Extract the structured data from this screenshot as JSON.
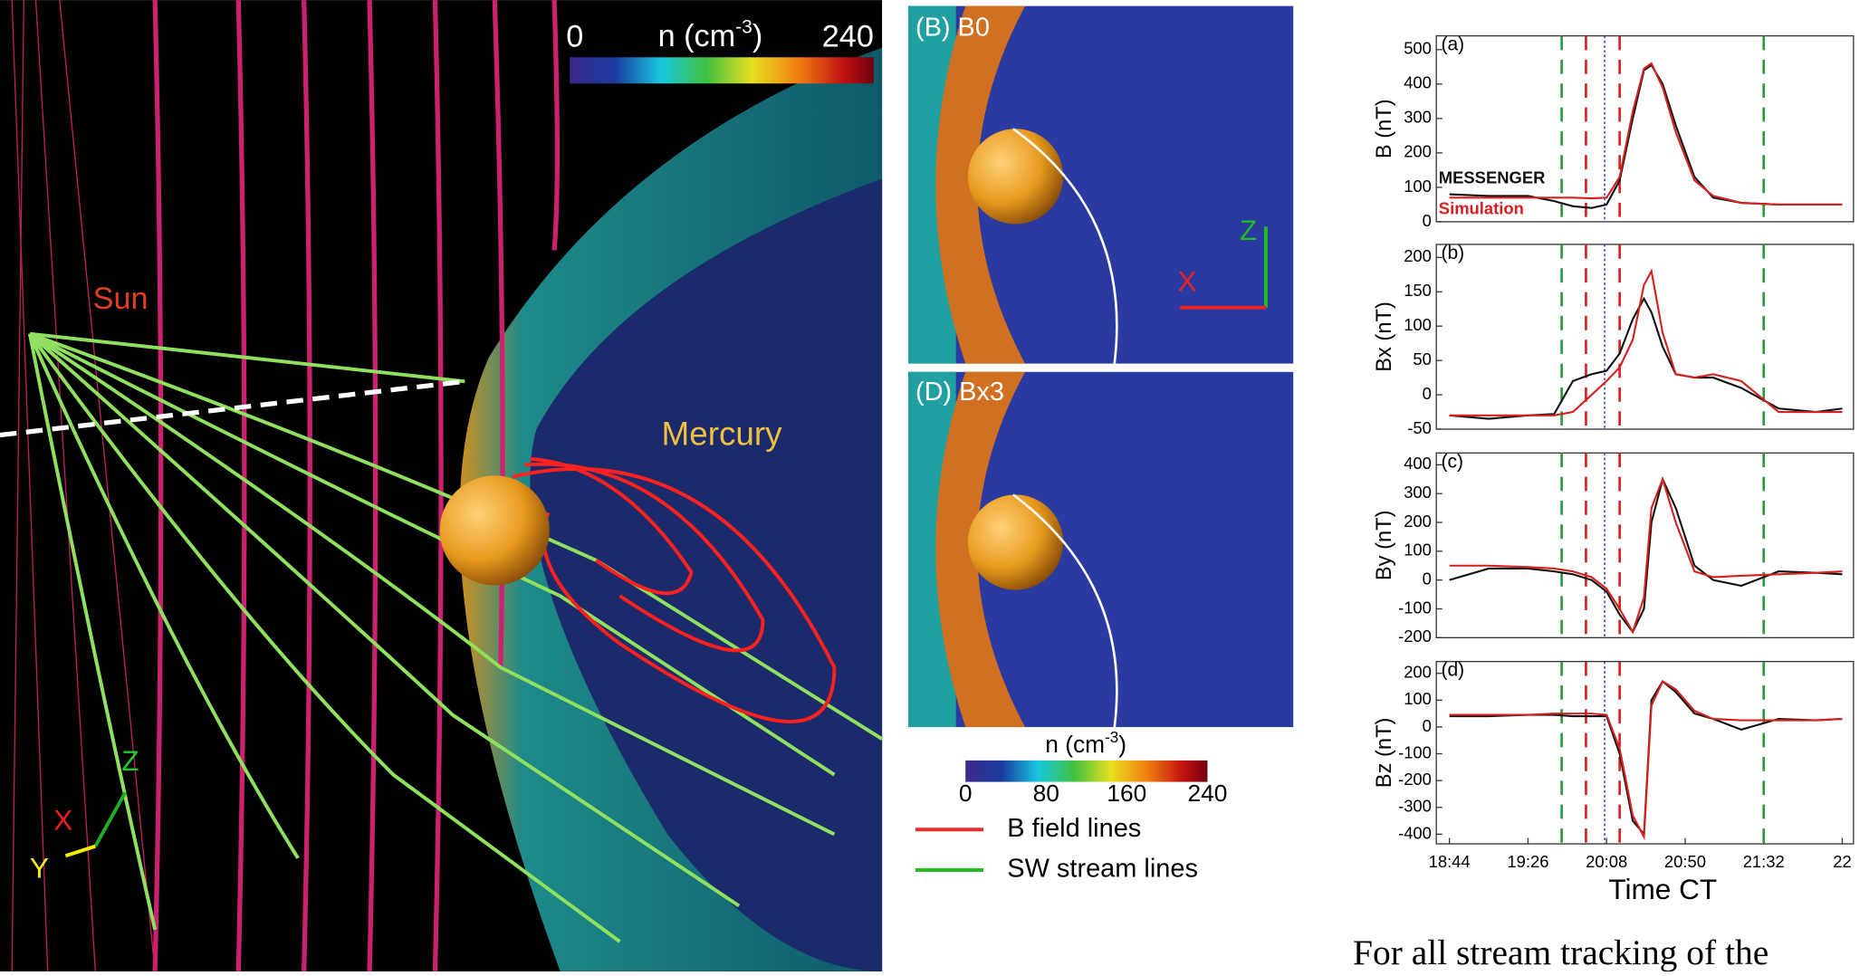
{
  "figure": {
    "left_panel": {
      "sun_label": "Sun",
      "planet_label": "Mercury",
      "colorbar": {
        "min": 0,
        "max": 240,
        "label": "n (cm",
        "label_sup": "-3",
        "label_end": ")"
      },
      "axes": {
        "z": "Z",
        "x": "X",
        "y": "Y"
      }
    },
    "middle_panel": {
      "panels": [
        "(B) B0",
        "(D) Bx3"
      ],
      "axes": {
        "z": "Z",
        "x": "X"
      },
      "colorbar": {
        "label": "n (cm",
        "label_sup": "-3",
        "label_end": ")",
        "range": [
          0,
          240
        ],
        "ticks": [
          0,
          80,
          160,
          240
        ]
      },
      "legend": [
        {
          "label": "B field lines",
          "color": "#e03030"
        },
        {
          "label": "SW stream lines",
          "color": "#22bb22"
        }
      ]
    },
    "time_markers": [
      {
        "x": 1184,
        "color": "#2a9a3a"
      },
      {
        "x": 1197,
        "color": "#d62020"
      },
      {
        "x": 1207,
        "color": "#3344cc"
      },
      {
        "x": 1215,
        "color": "#d62020"
      },
      {
        "x": 1292,
        "color": "#2a9a3a"
      }
    ],
    "body_text": "For all stream tracking of the"
  },
  "chart_data": [
    {
      "type": "line",
      "panel_label": "(a)",
      "ylabel": "B (nT)",
      "x": [
        1124,
        1145,
        1166,
        1180,
        1190,
        1200,
        1208,
        1215,
        1222,
        1228,
        1232,
        1238,
        1245,
        1255,
        1265,
        1280,
        1300,
        1320,
        1334
      ],
      "xlim": [
        1117,
        1340
      ],
      "ylim": [
        0,
        540
      ],
      "yticks": [
        0,
        100,
        200,
        300,
        400,
        500
      ],
      "series": [
        {
          "name": "MESSENGER",
          "color": "#111111",
          "values": [
            80,
            75,
            75,
            60,
            45,
            40,
            50,
            120,
            300,
            440,
            455,
            400,
            280,
            130,
            70,
            55,
            50,
            50,
            50
          ]
        },
        {
          "name": "Simulation",
          "color": "#d62020",
          "values": [
            70,
            70,
            70,
            70,
            70,
            68,
            70,
            130,
            320,
            445,
            460,
            390,
            260,
            120,
            75,
            55,
            50,
            50,
            50
          ]
        }
      ]
    },
    {
      "type": "line",
      "panel_label": "(b)",
      "ylabel": "Bx (nT)",
      "x": [
        1124,
        1145,
        1166,
        1180,
        1190,
        1200,
        1208,
        1215,
        1222,
        1228,
        1232,
        1238,
        1245,
        1255,
        1265,
        1280,
        1300,
        1320,
        1334
      ],
      "xlim": [
        1117,
        1340
      ],
      "ylim": [
        -50,
        219
      ],
      "yticks": [
        -50,
        0,
        50,
        100,
        150,
        200
      ],
      "series": [
        {
          "color": "#111111",
          "values": [
            -30,
            -35,
            -30,
            -28,
            20,
            30,
            35,
            60,
            110,
            140,
            120,
            70,
            30,
            25,
            25,
            10,
            -20,
            -25,
            -20
          ]
        },
        {
          "color": "#d62020",
          "values": [
            -30,
            -30,
            -30,
            -30,
            -25,
            0,
            20,
            40,
            80,
            160,
            180,
            90,
            30,
            25,
            30,
            20,
            -25,
            -25,
            -25
          ]
        }
      ]
    },
    {
      "type": "line",
      "panel_label": "(c)",
      "ylabel": "By (nT)",
      "x": [
        1124,
        1145,
        1166,
        1180,
        1190,
        1200,
        1208,
        1215,
        1222,
        1228,
        1232,
        1238,
        1245,
        1255,
        1265,
        1280,
        1300,
        1320,
        1334
      ],
      "xlim": [
        1117,
        1340
      ],
      "ylim": [
        -200,
        441
      ],
      "yticks": [
        -200,
        -100,
        0,
        100,
        200,
        300,
        400
      ],
      "series": [
        {
          "color": "#111111",
          "values": [
            0,
            40,
            40,
            30,
            20,
            0,
            -40,
            -120,
            -180,
            -100,
            200,
            350,
            250,
            50,
            0,
            -20,
            30,
            25,
            20
          ]
        },
        {
          "color": "#d62020",
          "values": [
            50,
            50,
            45,
            40,
            30,
            10,
            -30,
            -100,
            -180,
            -60,
            250,
            350,
            200,
            30,
            10,
            15,
            20,
            25,
            30
          ]
        }
      ]
    },
    {
      "type": "line",
      "panel_label": "(d)",
      "ylabel": "Bz (nT)",
      "xlabel": "Time CT",
      "x": [
        1124,
        1145,
        1166,
        1180,
        1190,
        1200,
        1208,
        1215,
        1222,
        1228,
        1232,
        1238,
        1245,
        1255,
        1265,
        1280,
        1300,
        1320,
        1334
      ],
      "xlim": [
        1117,
        1340
      ],
      "ylim": [
        -436,
        244
      ],
      "yticks": [
        -400,
        -300,
        -200,
        -100,
        0,
        100,
        200
      ],
      "xticks": [
        {
          "value": 1124,
          "label": "18:44"
        },
        {
          "value": 1166,
          "label": "19:26"
        },
        {
          "value": 1208,
          "label": "20:08"
        },
        {
          "value": 1250,
          "label": "20:50"
        },
        {
          "value": 1292,
          "label": "21:32"
        },
        {
          "value": 1334,
          "label": "22"
        }
      ],
      "series": [
        {
          "color": "#111111",
          "values": [
            40,
            40,
            45,
            45,
            40,
            40,
            40,
            -100,
            -350,
            -400,
            100,
            170,
            130,
            50,
            30,
            -10,
            30,
            25,
            30
          ]
        },
        {
          "color": "#d62020",
          "values": [
            45,
            45,
            45,
            50,
            50,
            50,
            45,
            -80,
            -330,
            -410,
            80,
            170,
            140,
            60,
            30,
            25,
            25,
            25,
            30
          ]
        }
      ]
    }
  ]
}
